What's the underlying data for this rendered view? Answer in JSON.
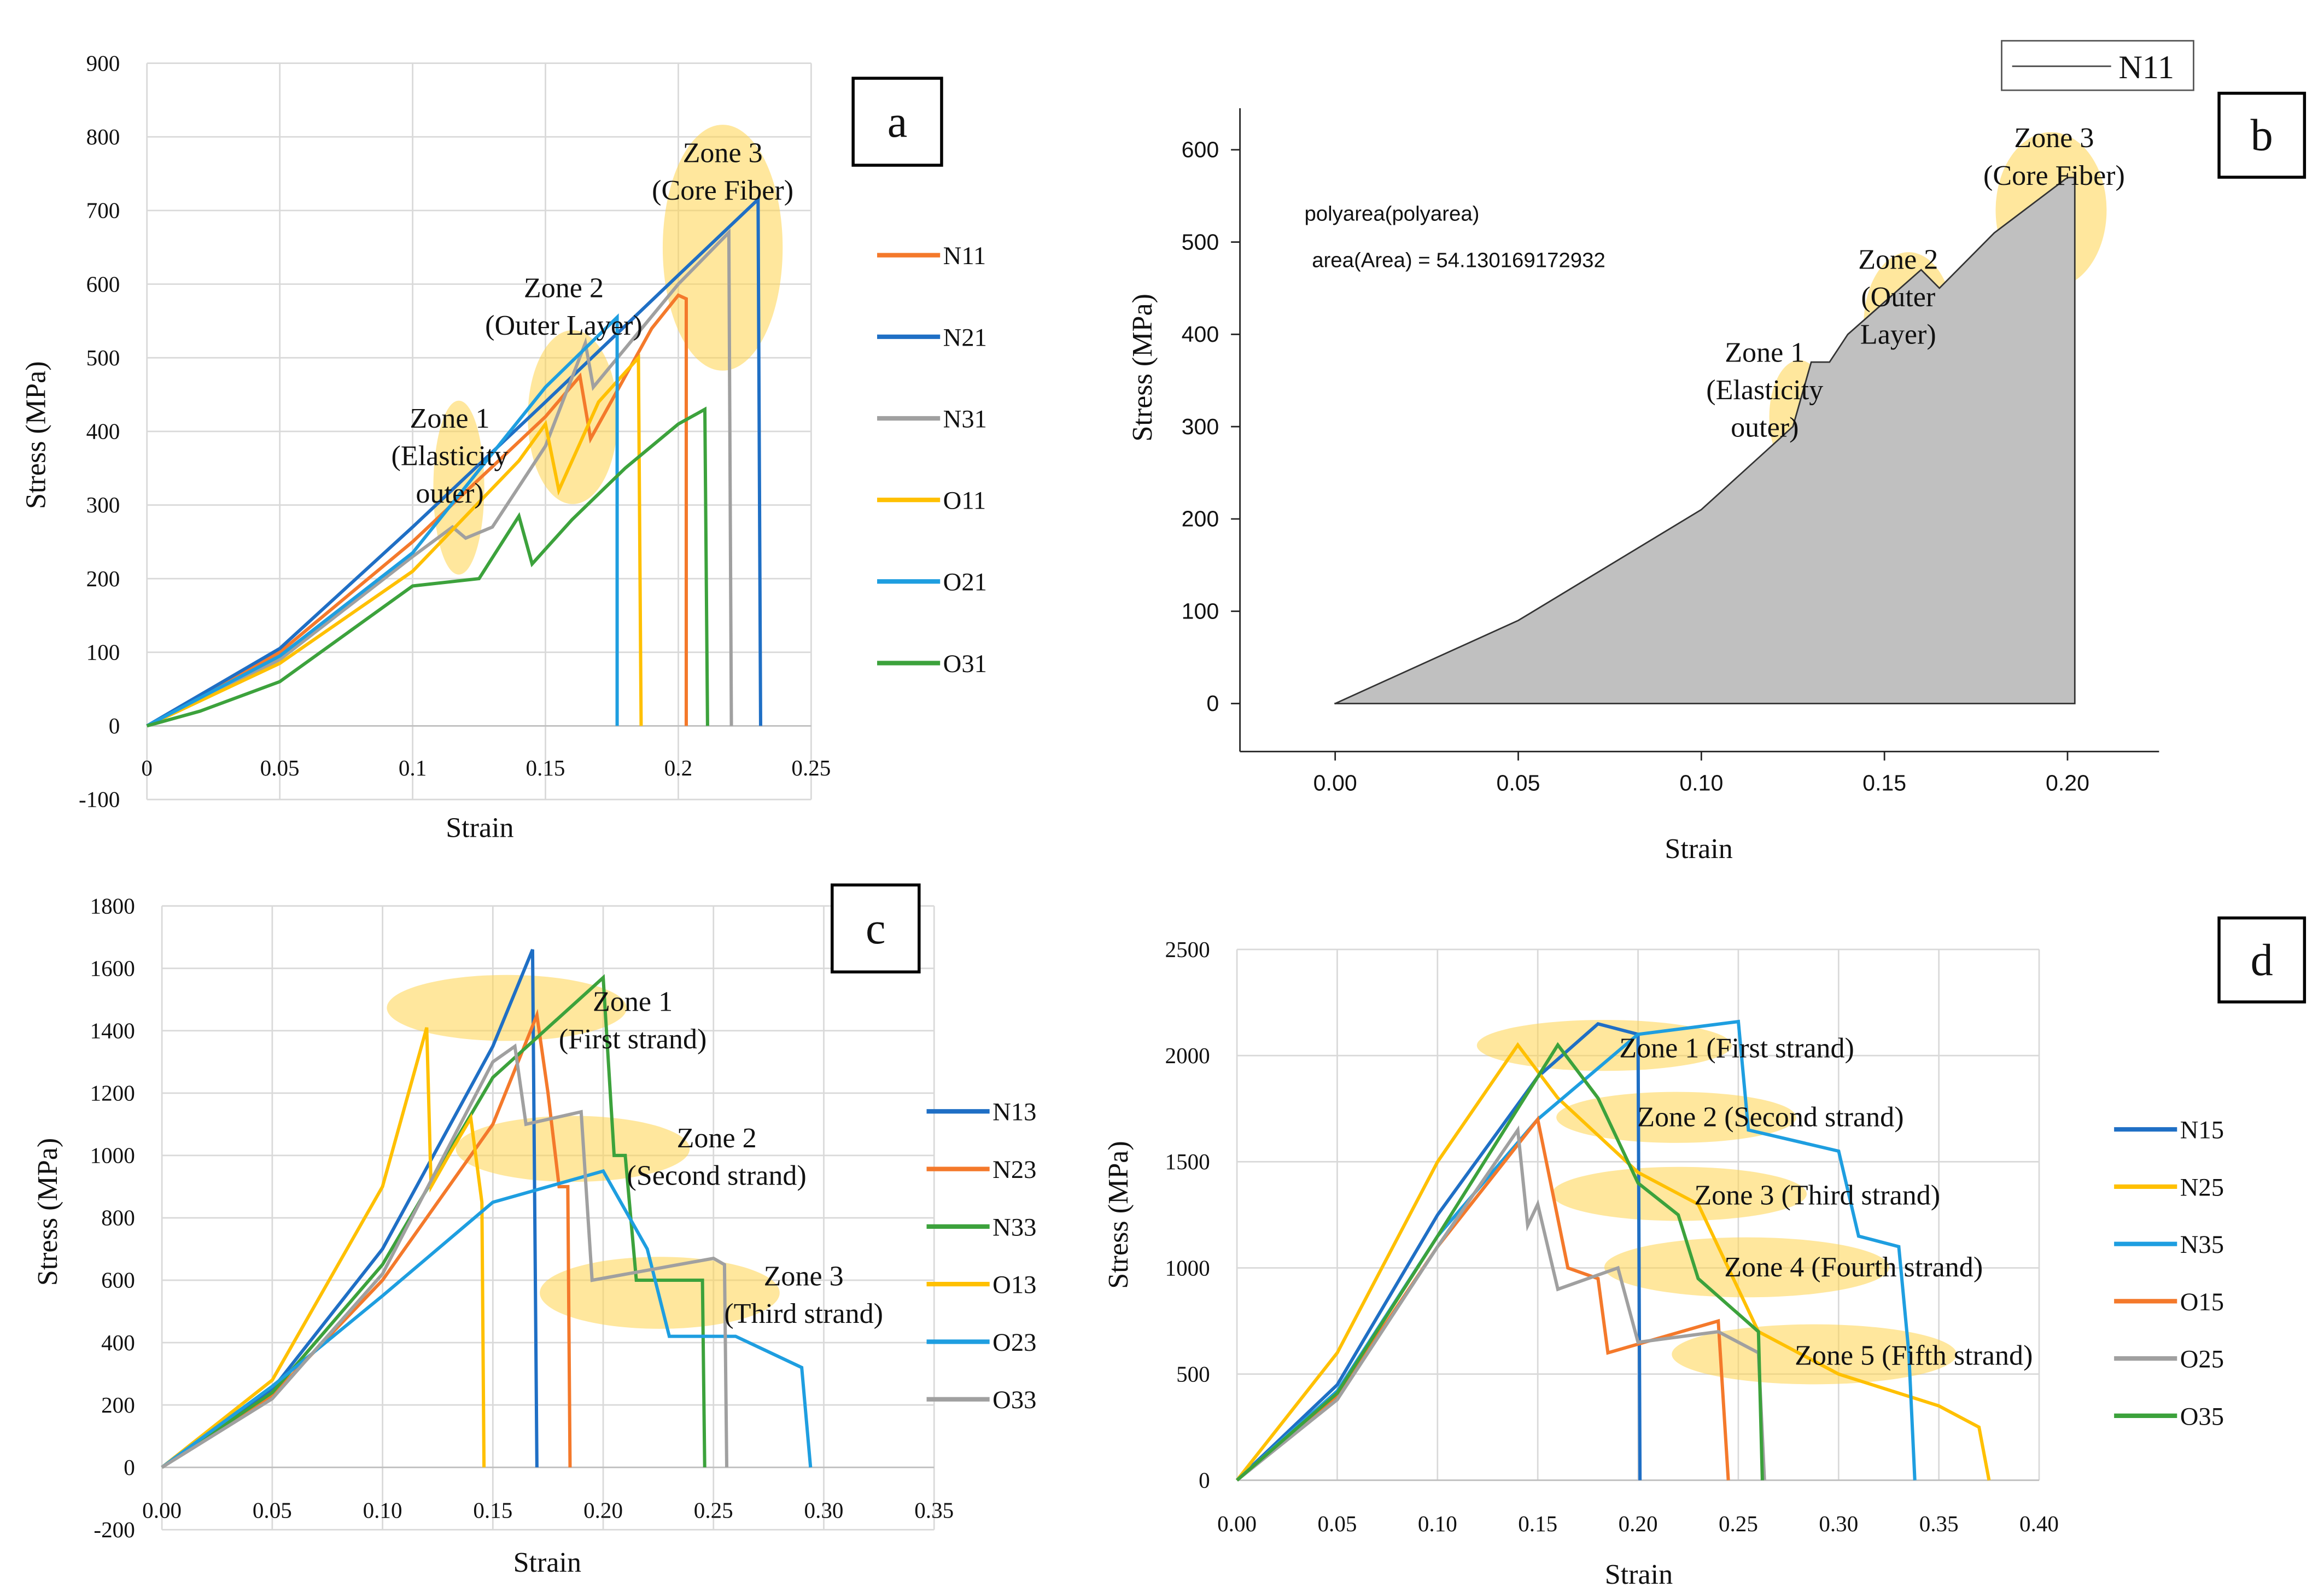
{
  "chart_data": [
    {
      "panel": "a",
      "type": "line",
      "label": "a",
      "xlabel": "Strain",
      "ylabel": "Stress (MPa)",
      "xlim": [
        0,
        0.25
      ],
      "ylim": [
        -100,
        900
      ],
      "xticks": [
        "0",
        "0.05",
        "0.1",
        "0.15",
        "0.2",
        "0.25"
      ],
      "yticks": [
        "-100",
        "0",
        "100",
        "200",
        "300",
        "400",
        "500",
        "600",
        "700",
        "800",
        "900"
      ],
      "grid": true,
      "legend_position": "right",
      "annotations": [
        {
          "l1": "Zone 1",
          "l2": "(Elasticity",
          "l3": "outer)"
        },
        {
          "l1": "Zone 2",
          "l2": "(Outer Layer)"
        },
        {
          "l1": "Zone 3",
          "l2": "(Core Fiber)"
        }
      ],
      "series": [
        {
          "name": "N11",
          "color": "#f4792b",
          "points": [
            [
              0,
              0
            ],
            [
              0.05,
              100
            ],
            [
              0.1,
              250
            ],
            [
              0.15,
              420
            ],
            [
              0.163,
              475
            ],
            [
              0.167,
              390
            ],
            [
              0.19,
              540
            ],
            [
              0.2,
              585
            ],
            [
              0.203,
              580
            ],
            [
              0.203,
              0
            ]
          ]
        },
        {
          "name": "N21",
          "color": "#1f6fc5",
          "points": [
            [
              0,
              0
            ],
            [
              0.05,
              105
            ],
            [
              0.1,
              270
            ],
            [
              0.15,
              440
            ],
            [
              0.195,
              595
            ],
            [
              0.23,
              715
            ],
            [
              0.231,
              0
            ]
          ]
        },
        {
          "name": "N31",
          "color": "#a0a0a0",
          "points": [
            [
              0,
              0
            ],
            [
              0.05,
              90
            ],
            [
              0.1,
              230
            ],
            [
              0.115,
              270
            ],
            [
              0.12,
              255
            ],
            [
              0.13,
              270
            ],
            [
              0.15,
              380
            ],
            [
              0.165,
              520
            ],
            [
              0.168,
              460
            ],
            [
              0.2,
              600
            ],
            [
              0.219,
              670
            ],
            [
              0.22,
              0
            ]
          ]
        },
        {
          "name": "O11",
          "color": "#ffc000",
          "points": [
            [
              0,
              0
            ],
            [
              0.05,
              85
            ],
            [
              0.1,
              210
            ],
            [
              0.14,
              360
            ],
            [
              0.15,
              410
            ],
            [
              0.155,
              320
            ],
            [
              0.17,
              440
            ],
            [
              0.185,
              500
            ],
            [
              0.186,
              0
            ]
          ]
        },
        {
          "name": "O21",
          "color": "#1e9ee0",
          "points": [
            [
              0,
              0
            ],
            [
              0.05,
              95
            ],
            [
              0.1,
              235
            ],
            [
              0.15,
              460
            ],
            [
              0.177,
              555
            ],
            [
              0.177,
              0
            ]
          ]
        },
        {
          "name": "O31",
          "color": "#3ca23c",
          "points": [
            [
              0,
              0
            ],
            [
              0.02,
              20
            ],
            [
              0.05,
              60
            ],
            [
              0.1,
              190
            ],
            [
              0.125,
              200
            ],
            [
              0.14,
              285
            ],
            [
              0.145,
              220
            ],
            [
              0.16,
              280
            ],
            [
              0.18,
              350
            ],
            [
              0.2,
              410
            ],
            [
              0.21,
              430
            ],
            [
              0.211,
              0
            ]
          ]
        }
      ]
    },
    {
      "panel": "b",
      "type": "area",
      "label": "b",
      "xlabel": "Strain",
      "ylabel": "Stress  (MPa)",
      "xlim": [
        -0.026,
        0.225
      ],
      "ylim": [
        -52,
        645
      ],
      "xticks": [
        "0.00",
        "0.05",
        "0.10",
        "0.15",
        "0.20"
      ],
      "yticks": [
        "0",
        "100",
        "200",
        "300",
        "400",
        "500",
        "600"
      ],
      "grid": false,
      "legend_position": "top-right",
      "text1": "polyarea(polyarea)",
      "text2": "area(Area) = 54.130169172932",
      "annotations": [
        {
          "l1": "Zone 1",
          "l2": "(Elasticity",
          "l3": "outer)"
        },
        {
          "l1": "Zone 2",
          "l2": "(Outer",
          "l3": "Layer)"
        },
        {
          "l1": "Zone 3",
          "l2": "(Core Fiber)"
        }
      ],
      "series": [
        {
          "name": "N11",
          "color": "#c0c0c0",
          "points": [
            [
              0,
              0
            ],
            [
              0.05,
              90
            ],
            [
              0.1,
              210
            ],
            [
              0.125,
              300
            ],
            [
              0.13,
              370
            ],
            [
              0.135,
              370
            ],
            [
              0.14,
              400
            ],
            [
              0.16,
              470
            ],
            [
              0.165,
              450
            ],
            [
              0.18,
              510
            ],
            [
              0.2,
              570
            ],
            [
              0.202,
              570
            ],
            [
              0.202,
              0
            ]
          ]
        }
      ]
    },
    {
      "panel": "c",
      "type": "line",
      "label": "c",
      "xlabel": "Strain",
      "ylabel": "Stress (MPa)",
      "xlim": [
        0,
        0.35
      ],
      "ylim": [
        -200,
        1800
      ],
      "xticks": [
        "0.00",
        "0.05",
        "0.10",
        "0.15",
        "0.20",
        "0.25",
        "0.30",
        "0.35"
      ],
      "yticks": [
        "-200",
        "0",
        "200",
        "400",
        "600",
        "800",
        "1000",
        "1200",
        "1400",
        "1600",
        "1800"
      ],
      "grid": true,
      "legend_position": "right",
      "annotations": [
        {
          "l1": "Zone 1",
          "l2": "(First strand)"
        },
        {
          "l1": "Zone 2",
          "l2": "(Second strand)"
        },
        {
          "l1": "Zone 3",
          "l2": "(Third strand)"
        }
      ],
      "series": [
        {
          "name": "N13",
          "color": "#1f6fc5",
          "points": [
            [
              0,
              0
            ],
            [
              0.05,
              250
            ],
            [
              0.1,
              700
            ],
            [
              0.15,
              1350
            ],
            [
              0.168,
              1660
            ],
            [
              0.17,
              0
            ]
          ]
        },
        {
          "name": "N23",
          "color": "#f4792b",
          "points": [
            [
              0,
              0
            ],
            [
              0.05,
              230
            ],
            [
              0.1,
              600
            ],
            [
              0.15,
              1100
            ],
            [
              0.17,
              1450
            ],
            [
              0.175,
              1200
            ],
            [
              0.18,
              900
            ],
            [
              0.184,
              900
            ],
            [
              0.185,
              0
            ]
          ]
        },
        {
          "name": "N33",
          "color": "#3ca23c",
          "points": [
            [
              0,
              0
            ],
            [
              0.05,
              240
            ],
            [
              0.1,
              650
            ],
            [
              0.15,
              1250
            ],
            [
              0.2,
              1570
            ],
            [
              0.205,
              1000
            ],
            [
              0.21,
              1000
            ],
            [
              0.215,
              600
            ],
            [
              0.245,
              600
            ],
            [
              0.246,
              0
            ]
          ]
        },
        {
          "name": "O13",
          "color": "#ffc000",
          "points": [
            [
              0,
              0
            ],
            [
              0.05,
              280
            ],
            [
              0.1,
              900
            ],
            [
              0.12,
              1410
            ],
            [
              0.122,
              900
            ],
            [
              0.13,
              1000
            ],
            [
              0.14,
              1120
            ],
            [
              0.145,
              850
            ],
            [
              0.146,
              0
            ]
          ]
        },
        {
          "name": "O23",
          "color": "#1e9ee0",
          "points": [
            [
              0,
              0
            ],
            [
              0.05,
              260
            ],
            [
              0.1,
              550
            ],
            [
              0.15,
              850
            ],
            [
              0.2,
              950
            ],
            [
              0.22,
              700
            ],
            [
              0.23,
              420
            ],
            [
              0.26,
              420
            ],
            [
              0.29,
              320
            ],
            [
              0.294,
              0
            ]
          ]
        },
        {
          "name": "O33",
          "color": "#a0a0a0",
          "points": [
            [
              0,
              0
            ],
            [
              0.05,
              220
            ],
            [
              0.1,
              620
            ],
            [
              0.15,
              1300
            ],
            [
              0.16,
              1350
            ],
            [
              0.165,
              1100
            ],
            [
              0.19,
              1140
            ],
            [
              0.195,
              600
            ],
            [
              0.25,
              670
            ],
            [
              0.255,
              650
            ],
            [
              0.256,
              0
            ]
          ]
        }
      ]
    },
    {
      "panel": "d",
      "type": "line",
      "label": "d",
      "xlabel": "Strain",
      "ylabel": "Stress (MPa)",
      "xlim": [
        0,
        0.4
      ],
      "ylim": [
        0,
        2500
      ],
      "xticks": [
        "0.00",
        "0.05",
        "0.10",
        "0.15",
        "0.20",
        "0.25",
        "0.30",
        "0.35",
        "0.40"
      ],
      "yticks": [
        "0",
        "500",
        "1000",
        "1500",
        "2000",
        "2500"
      ],
      "grid": true,
      "legend_position": "right",
      "annotations": [
        {
          "l1": "Zone 1 (First strand)"
        },
        {
          "l1": "Zone 2 (Second strand)"
        },
        {
          "l1": "Zone 3 (Third strand)"
        },
        {
          "l1": "Zone 4 (Fourth strand)"
        },
        {
          "l1": "Zone 5 (Fifth strand)"
        }
      ],
      "series": [
        {
          "name": "N15",
          "color": "#1f6fc5",
          "points": [
            [
              0,
              0
            ],
            [
              0.05,
              450
            ],
            [
              0.1,
              1250
            ],
            [
              0.15,
              1900
            ],
            [
              0.18,
              2150
            ],
            [
              0.2,
              2100
            ],
            [
              0.201,
              0
            ]
          ]
        },
        {
          "name": "N25",
          "color": "#ffc000",
          "points": [
            [
              0,
              0
            ],
            [
              0.05,
              600
            ],
            [
              0.1,
              1500
            ],
            [
              0.14,
              2050
            ],
            [
              0.16,
              1800
            ],
            [
              0.2,
              1450
            ],
            [
              0.23,
              1300
            ],
            [
              0.26,
              700
            ],
            [
              0.3,
              500
            ],
            [
              0.35,
              350
            ],
            [
              0.37,
              250
            ],
            [
              0.375,
              0
            ]
          ]
        },
        {
          "name": "N35",
          "color": "#1e9ee0",
          "points": [
            [
              0,
              0
            ],
            [
              0.05,
              420
            ],
            [
              0.1,
              1150
            ],
            [
              0.15,
              1700
            ],
            [
              0.2,
              2100
            ],
            [
              0.25,
              2160
            ],
            [
              0.255,
              1650
            ],
            [
              0.3,
              1550
            ],
            [
              0.31,
              1150
            ],
            [
              0.33,
              1100
            ],
            [
              0.335,
              600
            ],
            [
              0.338,
              0
            ]
          ]
        },
        {
          "name": "O15",
          "color": "#f4792b",
          "points": [
            [
              0,
              0
            ],
            [
              0.05,
              400
            ],
            [
              0.1,
              1100
            ],
            [
              0.15,
              1700
            ],
            [
              0.165,
              1000
            ],
            [
              0.18,
              950
            ],
            [
              0.185,
              600
            ],
            [
              0.24,
              750
            ],
            [
              0.245,
              0
            ]
          ]
        },
        {
          "name": "O25",
          "color": "#a0a0a0",
          "points": [
            [
              0,
              0
            ],
            [
              0.05,
              380
            ],
            [
              0.1,
              1100
            ],
            [
              0.14,
              1650
            ],
            [
              0.145,
              1200
            ],
            [
              0.15,
              1300
            ],
            [
              0.16,
              900
            ],
            [
              0.19,
              1000
            ],
            [
              0.2,
              650
            ],
            [
              0.24,
              700
            ],
            [
              0.26,
              600
            ],
            [
              0.263,
              0
            ]
          ]
        },
        {
          "name": "O35",
          "color": "#3ca23c",
          "points": [
            [
              0,
              0
            ],
            [
              0.05,
              410
            ],
            [
              0.1,
              1150
            ],
            [
              0.16,
              2050
            ],
            [
              0.18,
              1800
            ],
            [
              0.2,
              1400
            ],
            [
              0.22,
              1250
            ],
            [
              0.23,
              950
            ],
            [
              0.26,
              700
            ],
            [
              0.262,
              0
            ]
          ]
        }
      ]
    }
  ]
}
